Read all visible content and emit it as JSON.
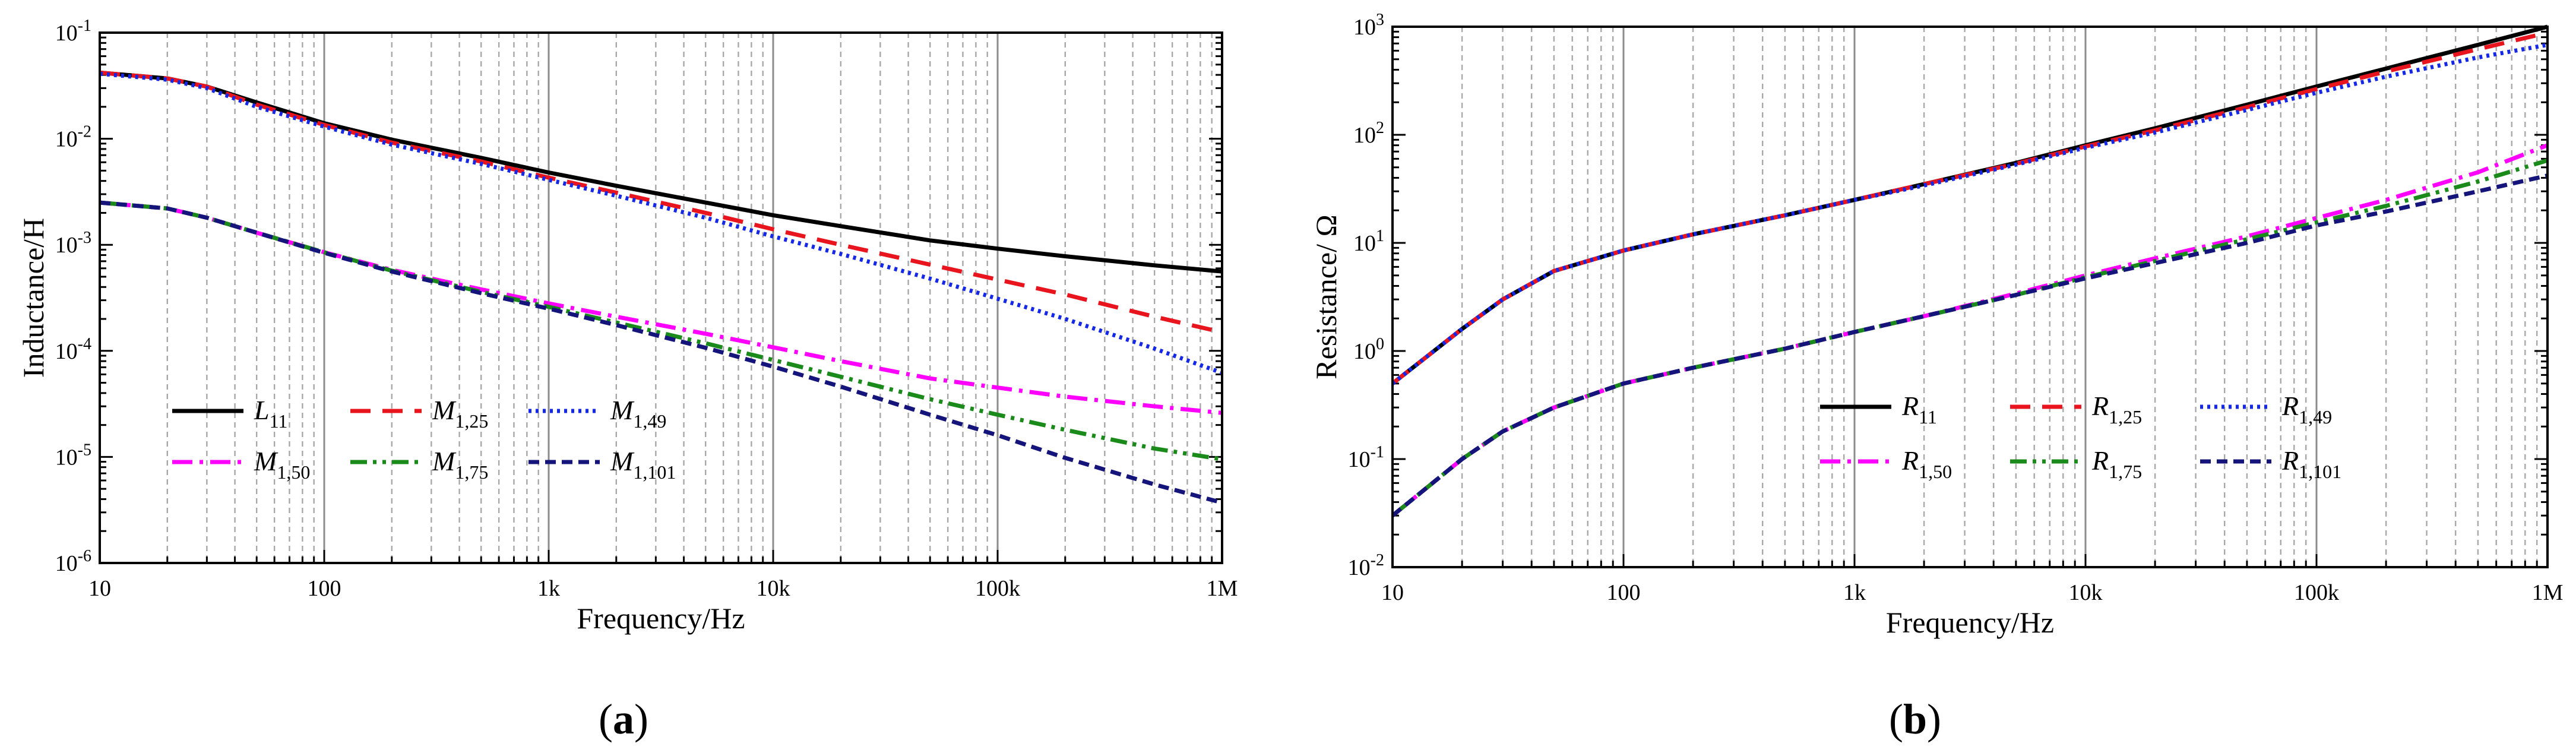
{
  "figure": {
    "panel_labels": [
      "(a)",
      "(b)"
    ]
  },
  "chart_data": [
    {
      "type": "line",
      "panel": "(a)",
      "title": "",
      "xlabel": "Frequency/Hz",
      "ylabel": "Inductance/H",
      "xscale": "log",
      "yscale": "log",
      "xlim": [
        10,
        1000000
      ],
      "ylim": [
        1e-06,
        0.1
      ],
      "xticks": [
        10,
        100,
        1000,
        10000,
        100000,
        1000000
      ],
      "xtick_labels": [
        "10",
        "100",
        "1k",
        "10k",
        "100k",
        "1M"
      ],
      "yticks": [
        1e-06,
        1e-05,
        0.0001,
        0.001,
        0.01,
        0.1
      ],
      "ytick_labels": [
        {
          "base": "10",
          "exp": "-6"
        },
        {
          "base": "10",
          "exp": "-5"
        },
        {
          "base": "10",
          "exp": "-4"
        },
        {
          "base": "10",
          "exp": "-3"
        },
        {
          "base": "10",
          "exp": "-2"
        },
        {
          "base": "10",
          "exp": "-1"
        }
      ],
      "grid": "vertical",
      "legend_position": "lower-left",
      "x": [
        10,
        20,
        30,
        50,
        100,
        200,
        500,
        1000,
        2000,
        5000,
        10000,
        20000,
        50000,
        100000,
        200000,
        500000,
        1000000
      ],
      "series": [
        {
          "name": "L",
          "sub": "11",
          "color": "#000000",
          "dash": "solid",
          "values": [
            0.042,
            0.037,
            0.031,
            0.022,
            0.014,
            0.0098,
            0.0066,
            0.0048,
            0.0036,
            0.0025,
            0.0019,
            0.0015,
            0.0011,
            0.00092,
            0.00078,
            0.00064,
            0.00056
          ]
        },
        {
          "name": "M",
          "sub": "1,25",
          "color": "#e8141e",
          "dash": "long-dash",
          "values": [
            0.042,
            0.037,
            0.031,
            0.021,
            0.0135,
            0.0092,
            0.0061,
            0.0043,
            0.0031,
            0.002,
            0.0014,
            0.001,
            0.00065,
            0.00047,
            0.00034,
            0.00021,
            0.00015
          ]
        },
        {
          "name": "M",
          "sub": "1,49",
          "color": "#1428e6",
          "dash": "dot",
          "values": [
            0.041,
            0.036,
            0.03,
            0.02,
            0.013,
            0.0088,
            0.0058,
            0.0041,
            0.0029,
            0.0018,
            0.0012,
            0.00082,
            0.00048,
            0.00031,
            0.0002,
            0.000105,
            6.2e-05
          ]
        },
        {
          "name": "M",
          "sub": "1,50",
          "color": "#ff00ff",
          "dash": "dash-dot",
          "values": [
            0.0025,
            0.0022,
            0.0018,
            0.0013,
            0.00085,
            0.00058,
            0.00038,
            0.00028,
            0.00021,
            0.000145,
            0.000108,
            8e-05,
            5.5e-05,
            4.5e-05,
            3.7e-05,
            3e-05,
            2.6e-05
          ]
        },
        {
          "name": "M",
          "sub": "1,75",
          "color": "#1a8a1a",
          "dash": "dash-dot-dot",
          "values": [
            0.0025,
            0.0022,
            0.0018,
            0.0013,
            0.00085,
            0.00057,
            0.00036,
            0.00026,
            0.000185,
            0.000118,
            8.2e-05,
            5.7e-05,
            3.5e-05,
            2.5e-05,
            1.8e-05,
            1.2e-05,
            9.5e-06
          ]
        },
        {
          "name": "M",
          "sub": "1,101",
          "color": "#14147a",
          "dash": "short-dash",
          "values": [
            0.0025,
            0.0022,
            0.0018,
            0.0013,
            0.00084,
            0.00056,
            0.00035,
            0.00025,
            0.000175,
            0.000107,
            7.1e-05,
            4.6e-05,
            2.5e-05,
            1.6e-05,
            9.8e-06,
            5.5e-06,
            3.7e-06
          ]
        }
      ]
    },
    {
      "type": "line",
      "panel": "(b)",
      "title": "",
      "xlabel": "Frequency/Hz",
      "ylabel": "Resistance/ Ω",
      "xscale": "log",
      "yscale": "log",
      "xlim": [
        10,
        1000000
      ],
      "ylim": [
        0.01,
        1000
      ],
      "xticks": [
        10,
        100,
        1000,
        10000,
        100000,
        1000000
      ],
      "xtick_labels": [
        "10",
        "100",
        "1k",
        "10k",
        "100k",
        "1M"
      ],
      "yticks": [
        0.01,
        0.1,
        1,
        10,
        100,
        1000
      ],
      "ytick_labels": [
        {
          "base": "10",
          "exp": "-2"
        },
        {
          "base": "10",
          "exp": "-1"
        },
        {
          "base": "10",
          "exp": "0"
        },
        {
          "base": "10",
          "exp": "1"
        },
        {
          "base": "10",
          "exp": "2"
        },
        {
          "base": "10",
          "exp": "3"
        }
      ],
      "grid": "vertical",
      "legend_position": "lower-right",
      "x": [
        10,
        20,
        30,
        50,
        100,
        200,
        500,
        1000,
        2000,
        5000,
        10000,
        20000,
        50000,
        100000,
        200000,
        500000,
        1000000
      ],
      "series": [
        {
          "name": "R",
          "sub": "11",
          "color": "#000000",
          "dash": "solid",
          "values": [
            0.5,
            1.6,
            3.0,
            5.5,
            8.5,
            12,
            18,
            25,
            35,
            55,
            80,
            115,
            190,
            280,
            410,
            680,
            1000
          ]
        },
        {
          "name": "R",
          "sub": "1,25",
          "color": "#e8141e",
          "dash": "long-dash",
          "values": [
            0.5,
            1.6,
            3.0,
            5.5,
            8.5,
            12,
            18,
            25,
            35,
            54,
            78,
            110,
            180,
            265,
            385,
            620,
            880
          ]
        },
        {
          "name": "R",
          "sub": "1,49",
          "color": "#1428e6",
          "dash": "dot",
          "values": [
            0.5,
            1.6,
            3.0,
            5.5,
            8.5,
            12,
            18,
            25,
            34,
            53,
            76,
            105,
            170,
            245,
            345,
            520,
            680
          ]
        },
        {
          "name": "R",
          "sub": "1,50",
          "color": "#ff00ff",
          "dash": "dash-dot",
          "values": [
            0.03,
            0.1,
            0.18,
            0.3,
            0.5,
            0.7,
            1.05,
            1.5,
            2.1,
            3.4,
            5.0,
            7.2,
            11.5,
            17,
            25,
            45,
            80
          ]
        },
        {
          "name": "R",
          "sub": "1,75",
          "color": "#1a8a1a",
          "dash": "dash-dot-dot",
          "values": [
            0.03,
            0.1,
            0.18,
            0.3,
            0.5,
            0.7,
            1.05,
            1.5,
            2.1,
            3.3,
            4.8,
            6.8,
            10.8,
            15.5,
            22,
            37,
            58
          ]
        },
        {
          "name": "R",
          "sub": "1,101",
          "color": "#14147a",
          "dash": "short-dash",
          "values": [
            0.03,
            0.1,
            0.18,
            0.3,
            0.5,
            0.7,
            1.05,
            1.5,
            2.1,
            3.3,
            4.7,
            6.5,
            10,
            14.5,
            19.5,
            30,
            42
          ]
        }
      ]
    }
  ]
}
